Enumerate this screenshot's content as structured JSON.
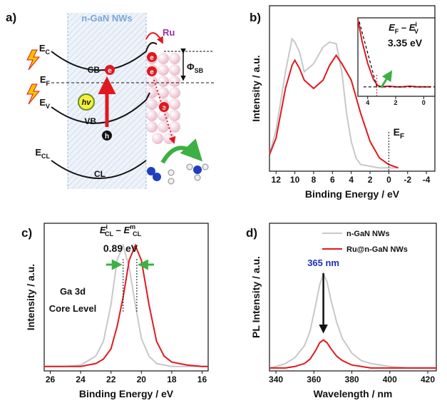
{
  "diagram": {
    "panel_label": "a)",
    "region": "n-GaN NWs",
    "metal": "Ru",
    "levels": [
      [
        "E",
        "C"
      ],
      [
        "E",
        "F"
      ],
      [
        "E",
        "V"
      ],
      [
        "E",
        "CL"
      ]
    ],
    "bands": [
      "CB",
      "VB",
      "CL"
    ],
    "electron": "e",
    "hole": "h",
    "photon": "hv",
    "barrier": [
      "Φ",
      "SB"
    ]
  },
  "chart_data": [
    {
      "type": "line",
      "panel_label": "b)",
      "xlabel": "Binding Energy / eV",
      "ylabel": "Intensity / a.u.",
      "xlim": [
        12.7,
        -4.9
      ],
      "ylim": [
        0,
        1
      ],
      "xticks": [
        12,
        10,
        8,
        6,
        4,
        2,
        0,
        -2,
        -4
      ],
      "x": [
        12.7,
        12,
        11,
        10.3,
        10,
        9.5,
        9,
        8,
        7,
        6.3,
        5.6,
        5,
        4.5,
        4,
        3.5,
        3,
        2,
        1,
        0,
        -1
      ],
      "series": [
        {
          "color": "#c8c8c8",
          "values": [
            0.1,
            0.25,
            0.6,
            0.8,
            0.78,
            0.72,
            0.6,
            0.65,
            0.75,
            0.78,
            0.77,
            0.6,
            0.35,
            0.18,
            0.08,
            0.04,
            0.03,
            0.02,
            0.02,
            0.02
          ]
        },
        {
          "color": "#e0191e",
          "values": [
            0.1,
            0.2,
            0.5,
            0.64,
            0.67,
            0.62,
            0.55,
            0.5,
            0.55,
            0.64,
            0.7,
            0.65,
            0.6,
            0.55,
            0.45,
            0.35,
            0.18,
            0.08,
            0.04,
            0.02
          ]
        }
      ],
      "annotation": {
        "x": 0,
        "parts": [
          {
            "text": "E",
            "style": "normal"
          },
          {
            "text": "F",
            "style": "sub"
          }
        ]
      }
    },
    {
      "type": "line",
      "panel_label": "c)",
      "xlabel": "Binding Energy / eV",
      "ylabel": "Intensity / a.u.",
      "xlim": [
        26.4,
        15.6
      ],
      "ylim": [
        0,
        1
      ],
      "xticks": [
        26,
        24,
        22,
        20,
        18,
        16
      ],
      "x": [
        26.4,
        25,
        24,
        23,
        22.5,
        22,
        21.6,
        21.2,
        20.8,
        20.4,
        20,
        19.5,
        19,
        18.5,
        18,
        17,
        16,
        15.6
      ],
      "series": [
        {
          "color": "#c8c8c8",
          "values": [
            0.03,
            0.03,
            0.04,
            0.1,
            0.2,
            0.45,
            0.75,
            0.85,
            0.7,
            0.45,
            0.22,
            0.1,
            0.05,
            0.04,
            0.03,
            0.03,
            0.03,
            0.03
          ]
        },
        {
          "color": "#e0191e",
          "values": [
            0.03,
            0.03,
            0.03,
            0.05,
            0.08,
            0.15,
            0.3,
            0.5,
            0.75,
            0.85,
            0.75,
            0.45,
            0.2,
            0.1,
            0.06,
            0.04,
            0.03,
            0.03
          ]
        }
      ],
      "markers": [
        21.2,
        20.3
      ],
      "title_parts": [
        {
          "text": "E",
          "style": "italic"
        },
        {
          "text": "i",
          "style": "sup"
        },
        {
          "text": "CL",
          "style": "sub"
        },
        {
          "text": " – ",
          "style": "normal"
        },
        {
          "text": "E",
          "style": "italic"
        },
        {
          "text": "m",
          "style": "sup"
        },
        {
          "text": "CL",
          "style": "sub"
        }
      ],
      "delta": {
        "value": 0.89,
        "label": "0.89 eV"
      },
      "note": [
        "Ga 3d",
        "Core Level"
      ]
    },
    {
      "type": "line",
      "panel_label": "d)",
      "xlabel": "Wavelength / nm",
      "ylabel": "PL Intensity / a.u.",
      "xlim": [
        336.6,
        424.5
      ],
      "ylim": [
        0,
        1
      ],
      "xticks": [
        340,
        360,
        380,
        400,
        420
      ],
      "x": [
        336.6,
        340,
        345,
        350,
        355,
        358,
        361,
        363,
        365,
        367,
        369,
        372,
        375,
        380,
        385,
        390,
        400,
        410,
        424.5
      ],
      "series": [
        {
          "name": "n-GaN NWs",
          "color": "#c8c8c8",
          "values": [
            0.02,
            0.03,
            0.05,
            0.09,
            0.17,
            0.27,
            0.45,
            0.58,
            0.66,
            0.6,
            0.48,
            0.33,
            0.22,
            0.12,
            0.07,
            0.05,
            0.03,
            0.02,
            0.02
          ]
        },
        {
          "name": "Ru@n-GaN NWs",
          "color": "#e0191e",
          "values": [
            0.02,
            0.02,
            0.02,
            0.03,
            0.05,
            0.08,
            0.14,
            0.19,
            0.21,
            0.19,
            0.15,
            0.1,
            0.07,
            0.04,
            0.03,
            0.02,
            0.02,
            0.02,
            0.02
          ]
        }
      ],
      "legend": "upper right",
      "peak": {
        "value": 365,
        "label": "365 nm"
      }
    },
    {
      "type": "line",
      "xlim": [
        4.7,
        -0.8
      ],
      "ylim": [
        0,
        1
      ],
      "xticks": [
        4,
        2,
        0
      ],
      "x": [
        4.7,
        4.4,
        4,
        3.6,
        3.3,
        3,
        2.5,
        2,
        1.5,
        1,
        0.5,
        0,
        -0.5
      ],
      "series": [
        {
          "color": "#e0191e",
          "values": [
            0.98,
            0.7,
            0.42,
            0.22,
            0.14,
            0.12,
            0.13,
            0.12,
            0.12,
            0.13,
            0.12,
            0.12,
            0.12
          ]
        },
        {
          "color": "#000000",
          "style": "dashed",
          "x": [
            4.6,
            3.35
          ],
          "values": [
            0.95,
            0.12
          ]
        },
        {
          "color": "#000000",
          "style": "dashed",
          "x": [
            4.3,
            -0.8
          ],
          "values": [
            0.12,
            0.12
          ]
        }
      ],
      "title_parts": [
        {
          "text": "E",
          "style": "italic"
        },
        {
          "text": "F",
          "style": "sub"
        },
        {
          "text": " – ",
          "style": "normal"
        },
        {
          "text": "E",
          "style": "italic"
        },
        {
          "text": "i",
          "style": "sup"
        },
        {
          "text": "V",
          "style": "sub"
        }
      ],
      "onset": {
        "value": 3.35,
        "label": "3.35 eV"
      }
    }
  ]
}
